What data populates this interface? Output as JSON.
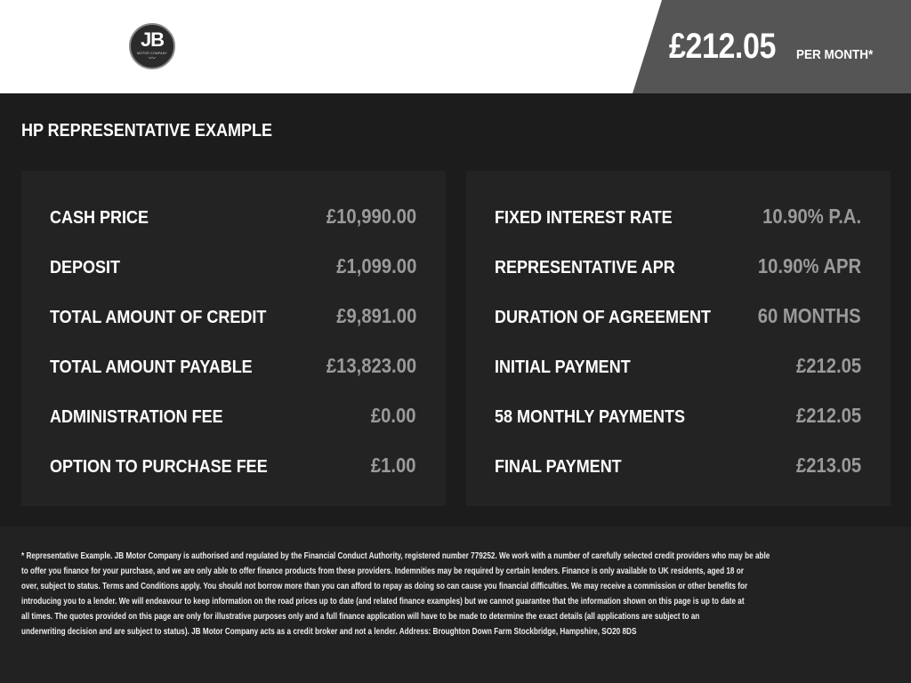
{
  "header": {
    "logo_text": "JB",
    "logo_subtext": "MOTOR COMPANY",
    "price": "£212.05",
    "per_month": "PER MONTH*"
  },
  "section_title": "HP REPRESENTATIVE EXAMPLE",
  "left": [
    {
      "label": "CASH PRICE",
      "value": "£10,990.00"
    },
    {
      "label": "DEPOSIT",
      "value": "£1,099.00"
    },
    {
      "label": "TOTAL AMOUNT OF CREDIT",
      "value": "£9,891.00"
    },
    {
      "label": "TOTAL AMOUNT PAYABLE",
      "value": "£13,823.00"
    },
    {
      "label": "ADMINISTRATION FEE",
      "value": "£0.00"
    },
    {
      "label": "OPTION TO PURCHASE FEE",
      "value": "£1.00"
    }
  ],
  "right": [
    {
      "label": "FIXED INTEREST RATE",
      "value": "10.90% P.A."
    },
    {
      "label": "REPRESENTATIVE APR",
      "value": "10.90% APR"
    },
    {
      "label": "DURATION OF AGREEMENT",
      "value": "60 MONTHS"
    },
    {
      "label": "INITIAL PAYMENT",
      "value": "£212.05"
    },
    {
      "label": "58 MONTHLY PAYMENTS",
      "value": "£212.05"
    },
    {
      "label": "FINAL PAYMENT",
      "value": "£213.05"
    }
  ],
  "disclaimer_lines": [
    "* Representative Example. JB Motor Company is authorised and regulated by the Financial Conduct Authority, registered number 779252. We work with a number of carefully selected credit providers who may be able",
    "to offer you finance for your purchase, and we are only able to offer finance products from these providers. Indemnities may be required by certain lenders. Finance is only available to UK residents, aged 18 or",
    "over, subject to status. Terms and Conditions apply. You should not borrow more than you can afford to repay as doing so can cause you financial difficulties. We may receive a commission or other benefits for",
    "introducing you to a lender. We will endeavour to keep information on the road prices up to date (and related finance examples) but we cannot guarantee that the information shown on this page is up to date at",
    "all times. The quotes provided on this page are only for illustrative purposes only and a full finance application will have to be made to determine the exact details (all applications are subject to an",
    "underwriting decision and are subject to status). JB Motor Company acts as a credit broker and not a lender. Address: Broughton Down Farm Stockbridge, Hampshire, SO20 8DS"
  ]
}
